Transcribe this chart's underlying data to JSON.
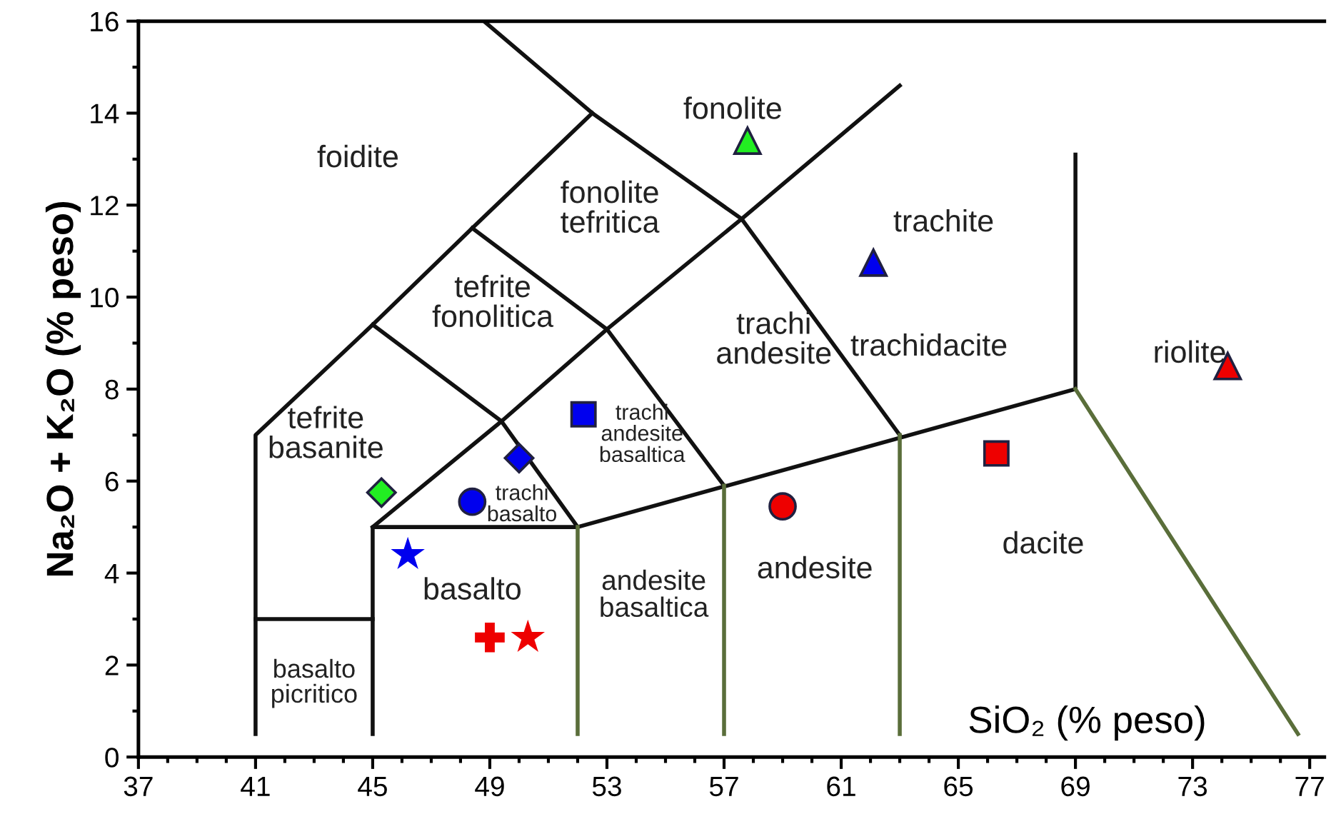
{
  "chart_data": {
    "type": "scatter",
    "xlabel": "SiO₂ (% peso)",
    "ylabel": "Na₂O + K₂O (% peso)",
    "xlim": [
      37,
      77.5
    ],
    "ylim": [
      0,
      16
    ],
    "xticks": [
      37,
      {
        "value": 38,
        "label": null
      },
      {
        "value": 39,
        "label": null
      },
      {
        "value": 40,
        "label": null
      },
      41,
      {
        "value": 42,
        "label": null
      },
      {
        "value": 43,
        "label": null
      },
      {
        "value": 44,
        "label": null
      },
      45,
      {
        "value": 46,
        "label": null
      },
      {
        "value": 47,
        "label": null
      },
      {
        "value": 48,
        "label": null
      },
      49,
      {
        "value": 50,
        "label": null
      },
      {
        "value": 51,
        "label": null
      },
      {
        "value": 52,
        "label": null
      },
      53,
      {
        "value": 54,
        "label": null
      },
      {
        "value": 55,
        "label": null
      },
      {
        "value": 56,
        "label": null
      },
      57,
      {
        "value": 58,
        "label": null
      },
      {
        "value": 59,
        "label": null
      },
      {
        "value": 60,
        "label": null
      },
      61,
      {
        "value": 62,
        "label": null
      },
      {
        "value": 63,
        "label": null
      },
      {
        "value": 64,
        "label": null
      },
      65,
      {
        "value": 66,
        "label": null
      },
      {
        "value": 67,
        "label": null
      },
      {
        "value": 68,
        "label": null
      },
      69,
      {
        "value": 70,
        "label": null
      },
      {
        "value": 71,
        "label": null
      },
      {
        "value": 72,
        "label": null
      },
      73,
      {
        "value": 74,
        "label": null
      },
      {
        "value": 75,
        "label": null
      },
      {
        "value": 76,
        "label": null
      },
      77
    ],
    "yticks": [
      0,
      {
        "value": 1,
        "label": null
      },
      2,
      {
        "value": 3,
        "label": null
      },
      4,
      {
        "value": 5,
        "label": null
      },
      6,
      {
        "value": 7,
        "label": null
      },
      8,
      {
        "value": 9,
        "label": null
      },
      10,
      {
        "value": 11,
        "label": null
      },
      12,
      {
        "value": 13,
        "label": null
      },
      14,
      {
        "value": 15,
        "label": null
      },
      16
    ],
    "grid": false,
    "series": [
      {
        "type": "line",
        "color": "#111111",
        "x": [
          41,
          41,
          45,
          48.4,
          52.5
        ],
        "values": [
          0.5,
          7,
          9.4,
          11.5,
          14
        ]
      },
      {
        "type": "line",
        "color": "#111111",
        "x": [
          48.8,
          52.5,
          57.6,
          63
        ],
        "values": [
          16,
          14,
          11.7,
          14.6
        ]
      },
      {
        "type": "line",
        "color": "#111111",
        "x": [
          41,
          45
        ],
        "values": [
          3,
          3
        ]
      },
      {
        "type": "line",
        "color": "#111111",
        "x": [
          45,
          45,
          52,
          69
        ],
        "values": [
          0.5,
          5,
          5,
          8
        ]
      },
      {
        "type": "line",
        "color": "#111111",
        "x": [
          45,
          49.4,
          53,
          57.6
        ],
        "values": [
          5,
          7.3,
          9.3,
          11.7
        ]
      },
      {
        "type": "line",
        "color": "#111111",
        "x": [
          45,
          49.4,
          52
        ],
        "values": [
          9.4,
          7.3,
          5
        ]
      },
      {
        "type": "line",
        "color": "#111111",
        "x": [
          48.4,
          53,
          57
        ],
        "values": [
          11.5,
          9.3,
          5.9
        ]
      },
      {
        "type": "line",
        "color": "#111111",
        "x": [
          57.6,
          63
        ],
        "values": [
          11.7,
          7
        ]
      },
      {
        "type": "line",
        "color": "#111111",
        "x": [
          69,
          69
        ],
        "values": [
          8,
          13.1
        ]
      },
      {
        "type": "line",
        "color": "#5a6e3a",
        "x": [
          52,
          52
        ],
        "values": [
          0.5,
          5
        ]
      },
      {
        "type": "line",
        "color": "#5a6e3a",
        "x": [
          57,
          57
        ],
        "values": [
          0.5,
          5.9
        ]
      },
      {
        "type": "line",
        "color": "#5a6e3a",
        "x": [
          63,
          63
        ],
        "values": [
          0.5,
          7
        ]
      },
      {
        "type": "line",
        "color": "#5a6e3a",
        "x": [
          69,
          76.6
        ],
        "values": [
          8,
          0.5
        ]
      },
      {
        "type": "scatter",
        "marker": "triangle",
        "color": "#22ee22",
        "x": [
          57.8
        ],
        "values": [
          13.4
        ]
      },
      {
        "type": "scatter",
        "marker": "triangle",
        "color": "#0000ee",
        "x": [
          62.1
        ],
        "values": [
          10.75
        ]
      },
      {
        "type": "scatter",
        "marker": "triangle",
        "color": "#ee0000",
        "x": [
          74.2
        ],
        "values": [
          8.5
        ]
      },
      {
        "type": "scatter",
        "marker": "square",
        "color": "#0000ee",
        "x": [
          52.2
        ],
        "values": [
          7.45
        ]
      },
      {
        "type": "scatter",
        "marker": "square",
        "color": "#ee0000",
        "x": [
          66.3
        ],
        "values": [
          6.6
        ]
      },
      {
        "type": "scatter",
        "marker": "diamond",
        "color": "#0000ee",
        "x": [
          50.0
        ],
        "values": [
          6.5
        ]
      },
      {
        "type": "scatter",
        "marker": "diamond",
        "color": "#22ee22",
        "x": [
          45.3
        ],
        "values": [
          5.75
        ]
      },
      {
        "type": "scatter",
        "marker": "circle",
        "color": "#0000ee",
        "x": [
          48.4
        ],
        "values": [
          5.55
        ]
      },
      {
        "type": "scatter",
        "marker": "circle",
        "color": "#ee0000",
        "x": [
          59.0
        ],
        "values": [
          5.45
        ]
      },
      {
        "type": "scatter",
        "marker": "star",
        "color": "#0000ee",
        "x": [
          46.2
        ],
        "values": [
          4.4
        ]
      },
      {
        "type": "scatter",
        "marker": "cross",
        "color": "#ee0000",
        "x": [
          49.0
        ],
        "values": [
          2.6
        ]
      },
      {
        "type": "scatter",
        "marker": "star",
        "color": "#ee0000",
        "x": [
          50.3
        ],
        "values": [
          2.6
        ]
      }
    ],
    "annotations": [
      "foidite",
      "fonolite",
      "fonolite\ntefritica",
      "tefrite\nfonolitica",
      "trachite",
      "trachi\nandesite",
      "trachidacite",
      "riolite",
      "tefrite\nbasanite",
      "trachi\nandesite\nbasaltica",
      "trachi\nbasalto",
      "basalto",
      "andesite\nbasaltica",
      "andesite",
      "dacite",
      "basalto\npicritico"
    ]
  }
}
